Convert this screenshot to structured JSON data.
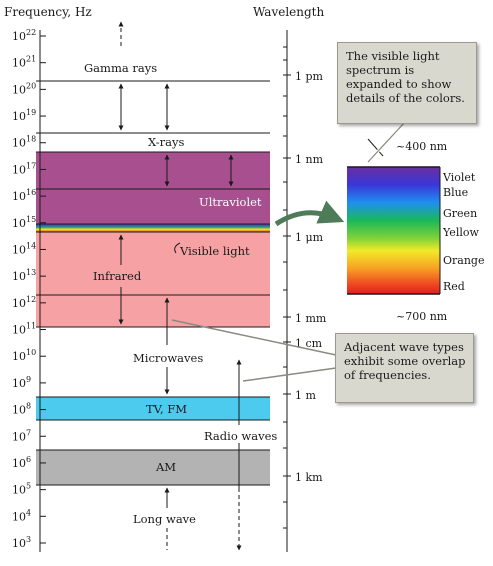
{
  "headers": {
    "frequency": "Frequency, Hz",
    "wavelength": "Wavelength"
  },
  "frequency_ticks": [
    {
      "base": "10",
      "exp": "22"
    },
    {
      "base": "10",
      "exp": "21"
    },
    {
      "base": "10",
      "exp": "20"
    },
    {
      "base": "10",
      "exp": "19"
    },
    {
      "base": "10",
      "exp": "18"
    },
    {
      "base": "10",
      "exp": "17"
    },
    {
      "base": "10",
      "exp": "16"
    },
    {
      "base": "10",
      "exp": "15"
    },
    {
      "base": "10",
      "exp": "14"
    },
    {
      "base": "10",
      "exp": "13"
    },
    {
      "base": "10",
      "exp": "12"
    },
    {
      "base": "10",
      "exp": "11"
    },
    {
      "base": "10",
      "exp": "10"
    },
    {
      "base": "10",
      "exp": "9"
    },
    {
      "base": "10",
      "exp": "8"
    },
    {
      "base": "10",
      "exp": "7"
    },
    {
      "base": "10",
      "exp": "6"
    },
    {
      "base": "10",
      "exp": "5"
    },
    {
      "base": "10",
      "exp": "4"
    },
    {
      "base": "10",
      "exp": "3"
    }
  ],
  "wavelength_labels": {
    "pm": "1 pm",
    "nm": "1 nm",
    "um": "1 μm",
    "mm": "1 mm",
    "cm": "1 cm",
    "m": "1 m",
    "km": "1 km"
  },
  "bands": {
    "gamma": "Gamma rays",
    "xrays": "X-rays",
    "ultraviolet": "Ultraviolet",
    "visible": "Visible light",
    "infrared": "Infrared",
    "microwaves": "Microwaves",
    "tvfm": "TV, FM",
    "radio": "Radio waves",
    "am": "AM",
    "longwave": "Long wave"
  },
  "spectrum": {
    "top": "~400 nm",
    "bottom": "~700 nm",
    "colors": [
      "Violet",
      "Blue",
      "Green",
      "Yellow",
      "Orange",
      "Red"
    ]
  },
  "callouts": {
    "visible": [
      "The visible light",
      "spectrum is",
      "expanded to show",
      "details of the colors."
    ],
    "overlap": [
      "Adjacent wave types",
      "exhibit some overlap",
      "of frequencies."
    ]
  },
  "colors": {
    "ultraviolet": "#a8508f",
    "infrared": "#f6a1a3",
    "tvfm": "#4ccbef",
    "am": "#b3b3b3",
    "callout": "#d9d8cf",
    "arrow_green": "#4f7c58"
  }
}
